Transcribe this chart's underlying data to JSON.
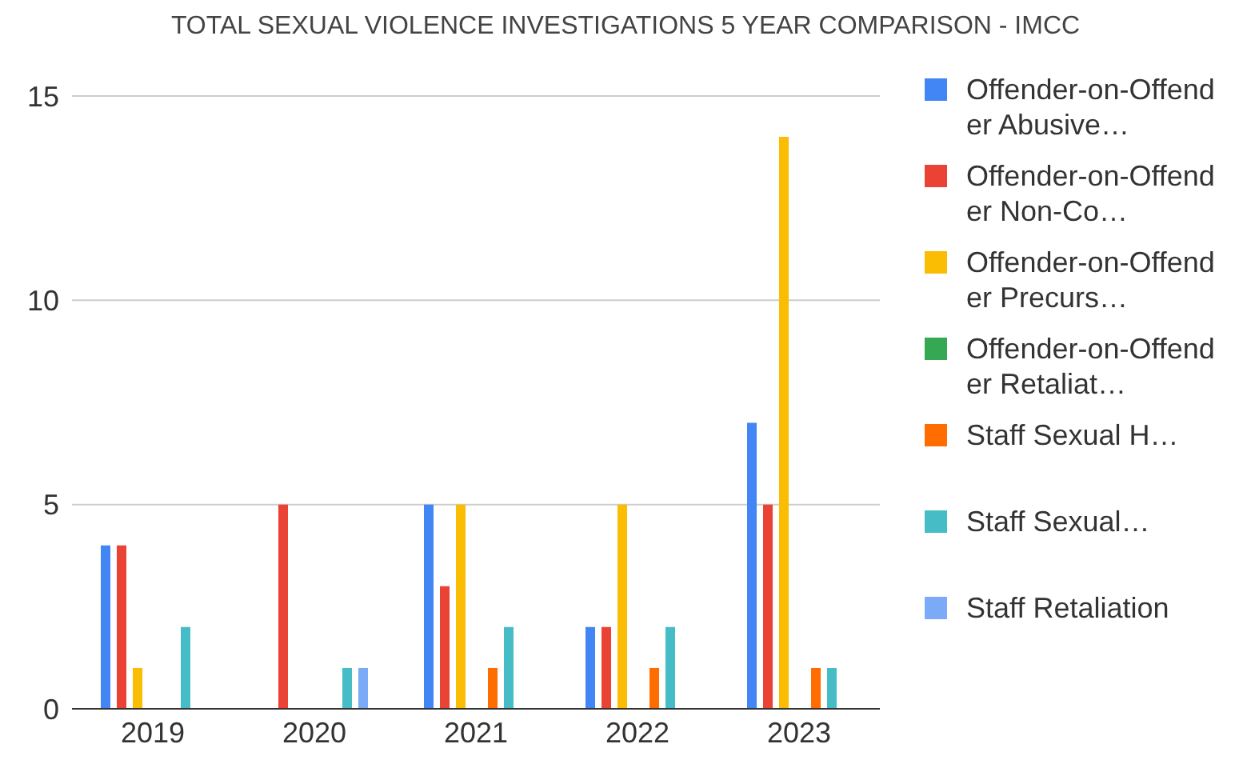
{
  "chart_data": {
    "type": "bar",
    "title": "TOTAL SEXUAL VIOLENCE INVESTIGATIONS 5 YEAR COMPARISON - IMCC",
    "categories": [
      "2019",
      "2020",
      "2021",
      "2022",
      "2023"
    ],
    "series": [
      {
        "name": "Offender-on-Offender Abusive…",
        "color": "#4285f4",
        "values": [
          4,
          0,
          5,
          2,
          7
        ]
      },
      {
        "name": "Offender-on-Offender Non-Co…",
        "color": "#ea4335",
        "values": [
          4,
          5,
          3,
          2,
          5
        ]
      },
      {
        "name": "Offender-on-Offender Precurs…",
        "color": "#fbbc04",
        "values": [
          1,
          0,
          5,
          5,
          14
        ]
      },
      {
        "name": "Offender-on-Offender Retaliat…",
        "color": "#34a853",
        "values": [
          0,
          0,
          0,
          0,
          0
        ]
      },
      {
        "name": "Staff Sexual H…",
        "color": "#ff6d01",
        "values": [
          0,
          0,
          1,
          1,
          1
        ]
      },
      {
        "name": "Staff Sexual…",
        "color": "#46bdc6",
        "values": [
          2,
          1,
          2,
          2,
          1
        ]
      },
      {
        "name": "Staff Retaliation",
        "color": "#7baaf7",
        "values": [
          0,
          1,
          0,
          0,
          0
        ]
      }
    ],
    "ylim": [
      0,
      15
    ],
    "yticks": [
      0,
      5,
      10,
      15
    ],
    "grid": "y",
    "legend": "right"
  }
}
